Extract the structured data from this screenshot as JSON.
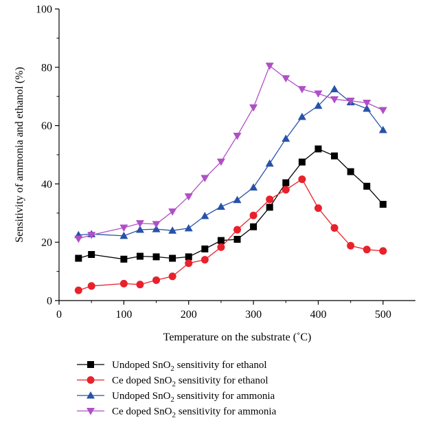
{
  "chart_data": {
    "type": "line",
    "title": "",
    "xlabel": "Temperature on the substrate (˚C)",
    "ylabel": "Sensitivity of ammonia and ethanol (%)",
    "xlim": [
      0,
      550
    ],
    "ylim": [
      0,
      100
    ],
    "xticks": [
      0,
      100,
      200,
      300,
      400,
      500
    ],
    "yticks": [
      0,
      20,
      40,
      60,
      80,
      100
    ],
    "grid": false,
    "legend_position": "bottom",
    "series": [
      {
        "name": "Undoped SnO2 sensitivity for ethanol",
        "legend_prefix": "Undoped SnO",
        "legend_sub": "2",
        "legend_suffix": " sensitivity for ethanol",
        "color": "#000000",
        "marker": "square",
        "x": [
          30,
          50,
          100,
          125,
          150,
          175,
          200,
          225,
          250,
          275,
          300,
          325,
          350,
          375,
          400,
          425,
          450,
          475,
          500
        ],
        "y": [
          14.5,
          15.8,
          14.2,
          15.2,
          15.0,
          14.5,
          15.0,
          17.7,
          20.6,
          21.0,
          25.3,
          32.0,
          40.4,
          47.5,
          52.0,
          49.6,
          44.2,
          39.2,
          33.0
        ]
      },
      {
        "name": "Ce doped SnO2 sensitivity for ethanol",
        "legend_prefix": "Ce doped SnO",
        "legend_sub": "2",
        "legend_suffix": " sensitivity for ethanol",
        "color": "#e8212b",
        "marker": "circle",
        "x": [
          30,
          50,
          100,
          125,
          150,
          175,
          200,
          225,
          250,
          275,
          300,
          325,
          350,
          375,
          400,
          425,
          450,
          475,
          500
        ],
        "y": [
          3.5,
          5.0,
          5.8,
          5.5,
          7.0,
          8.3,
          12.8,
          14.0,
          18.3,
          24.3,
          29.2,
          34.7,
          38.0,
          41.6,
          31.7,
          24.9,
          18.8,
          17.5,
          17.0
        ]
      },
      {
        "name": "Undoped SnO2 sensitivity for ammonia",
        "legend_prefix": "Undoped SnO",
        "legend_sub": "2",
        "legend_suffix": " sensitivity for ammonia",
        "color": "#2752a8",
        "marker": "triangle-up",
        "x": [
          30,
          50,
          100,
          125,
          150,
          175,
          200,
          225,
          250,
          275,
          300,
          325,
          350,
          375,
          400,
          425,
          450,
          475,
          500
        ],
        "y": [
          22.5,
          22.8,
          22.2,
          24.3,
          24.5,
          24.0,
          24.8,
          29.0,
          32.2,
          34.5,
          38.8,
          47.0,
          55.5,
          63.0,
          66.8,
          72.5,
          68.0,
          65.8,
          58.5
        ]
      },
      {
        "name": "Ce doped SnO2 sensitivity for ammonia",
        "legend_prefix": "Ce doped SnO",
        "legend_sub": "2",
        "legend_suffix": " sensitivity for ammonia",
        "color": "#b04fc6",
        "marker": "triangle-down",
        "x": [
          30,
          50,
          100,
          125,
          150,
          175,
          200,
          225,
          250,
          275,
          300,
          325,
          350,
          375,
          400,
          425,
          450,
          475,
          500
        ],
        "y": [
          21.2,
          22.5,
          25.0,
          26.5,
          26.2,
          30.5,
          35.7,
          42.0,
          47.6,
          56.5,
          66.2,
          80.5,
          76.2,
          72.5,
          71.0,
          69.0,
          68.5,
          67.8,
          65.3
        ]
      }
    ]
  }
}
